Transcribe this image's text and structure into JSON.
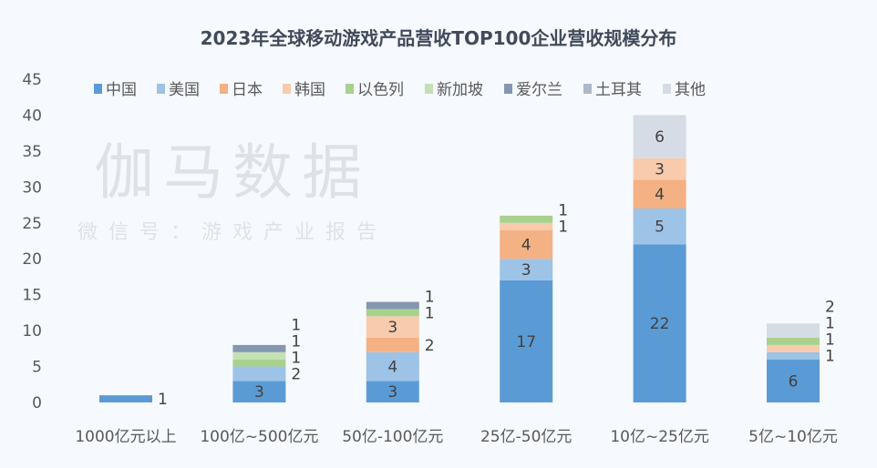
{
  "chart_data": {
    "type": "bar",
    "stacked": true,
    "title": "2023年全球移动游戏产品营收TOP100企业营收规模分布",
    "xlabel": "",
    "ylabel": "",
    "ylim": [
      0,
      45
    ],
    "yticks": [
      0,
      5,
      10,
      15,
      20,
      25,
      30,
      35,
      40,
      45
    ],
    "grid": false,
    "legend_position": "top",
    "categories": [
      "1000亿元以上",
      "100亿~500亿元",
      "50亿-100亿元",
      "25亿-50亿元",
      "10亿~25亿元",
      "5亿~10亿元"
    ],
    "series": [
      {
        "name": "中国",
        "color": "#5b9bd5",
        "values": [
          1,
          3,
          3,
          17,
          22,
          6
        ]
      },
      {
        "name": "美国",
        "color": "#9dc3e6",
        "values": [
          0,
          2,
          4,
          3,
          5,
          1
        ]
      },
      {
        "name": "日本",
        "color": "#f4b183",
        "values": [
          0,
          0,
          2,
          4,
          4,
          0
        ]
      },
      {
        "name": "韩国",
        "color": "#f8cbad",
        "values": [
          0,
          0,
          3,
          1,
          3,
          1
        ]
      },
      {
        "name": "以色列",
        "color": "#a9d18e",
        "values": [
          0,
          1,
          1,
          1,
          0,
          1
        ]
      },
      {
        "name": "新加坡",
        "color": "#c5e0b4",
        "values": [
          0,
          1,
          0,
          0,
          0,
          0
        ]
      },
      {
        "name": "爱尔兰",
        "color": "#8497b0",
        "values": [
          0,
          1,
          1,
          0,
          0,
          0
        ]
      },
      {
        "name": "土耳其",
        "color": "#adb9ca",
        "values": [
          0,
          0,
          0,
          0,
          0,
          0
        ]
      },
      {
        "name": "其他",
        "color": "#d6dce5",
        "values": [
          0,
          0,
          0,
          0,
          6,
          2
        ]
      }
    ]
  },
  "watermark": {
    "main": "伽马数据",
    "sub": "微信号：游戏产业报告"
  }
}
